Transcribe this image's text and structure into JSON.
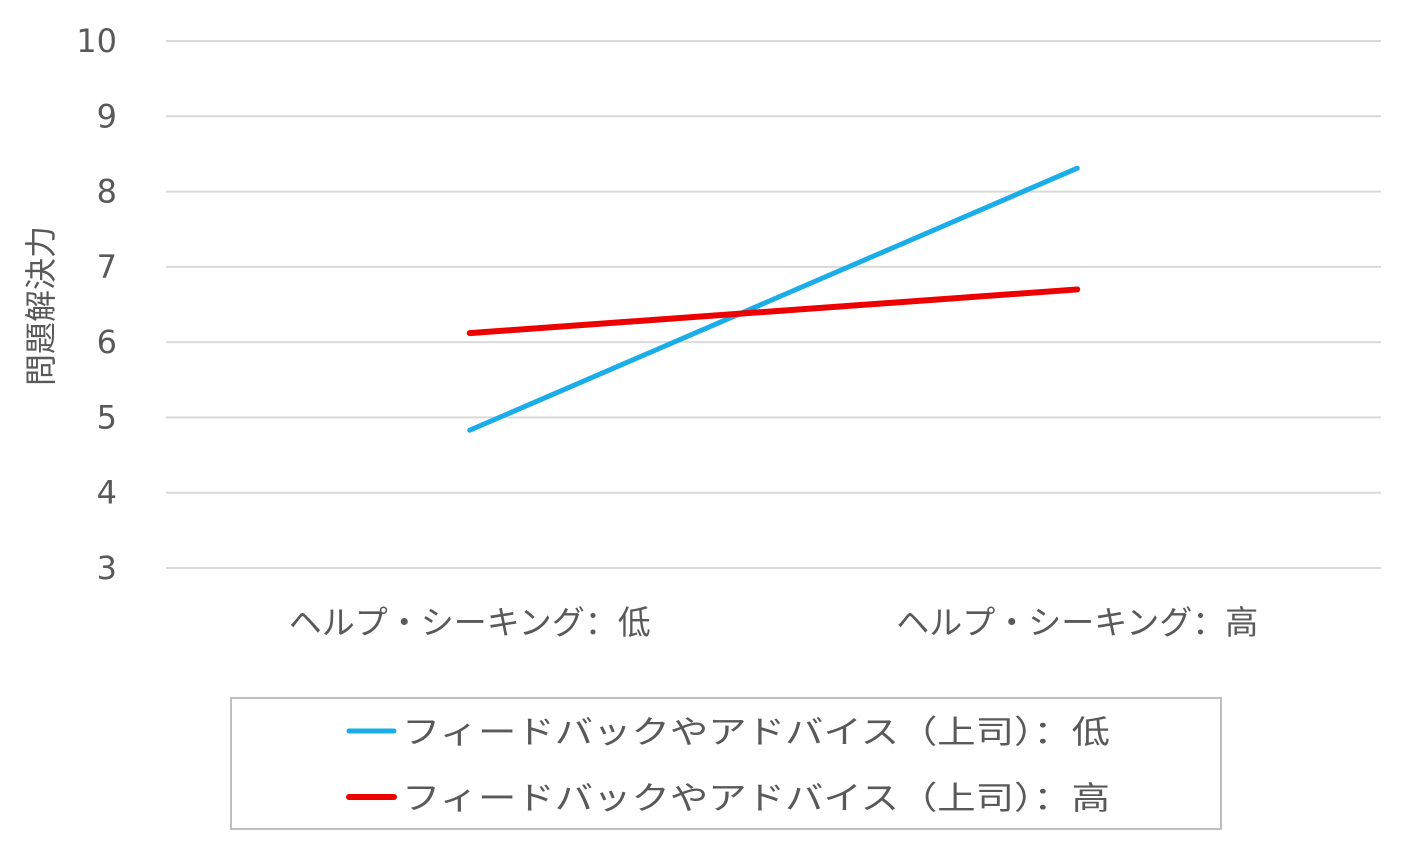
{
  "chart_data": {
    "type": "line",
    "title": "",
    "xlabel": "",
    "ylabel": "問題解決力",
    "ylim": [
      3,
      10
    ],
    "yticks": [
      3,
      4,
      5,
      6,
      7,
      8,
      9,
      10
    ],
    "grid": true,
    "legend_position": "bottom",
    "categories": [
      "ヘルプ・シーキング：低",
      "ヘルプ・シーキング：高"
    ],
    "series": [
      {
        "name": "フィードバックやアドバイス（上司）：低",
        "color": "#1AADE8",
        "values": [
          4.83,
          8.31
        ]
      },
      {
        "name": "フィードバックやアドバイス（上司）：高",
        "color": "#EE0000",
        "values": [
          6.12,
          6.7
        ]
      }
    ]
  }
}
